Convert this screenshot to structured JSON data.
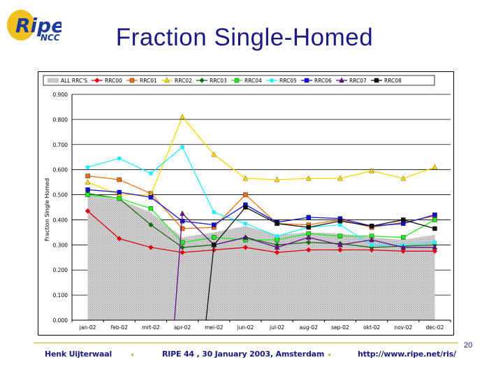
{
  "slide": {
    "title": "Fraction Single-Homed",
    "logo_main": "Ripe",
    "logo_sub": "NCC",
    "footer_author": "Henk Uijterwaal",
    "footer_event": "RIPE 44 ,  30 January 2003, Amsterdam",
    "footer_url": "http://www.ripe.net/ris/",
    "page_number": "20"
  },
  "chart_data": {
    "type": "line",
    "ylabel": "Fraction Single Homed",
    "xlabel": "",
    "categories": [
      "jan-02",
      "feb-02",
      "mrt-02",
      "apr-02",
      "mei-02",
      "jun-02",
      "jul-02",
      "aug-02",
      "sep-02",
      "okt-02",
      "nov-02",
      "dec-02"
    ],
    "ylim": [
      0,
      0.9
    ],
    "yticks": [
      "0.000",
      "0.100",
      "0.200",
      "0.300",
      "0.400",
      "0.500",
      "0.600",
      "0.700",
      "0.800",
      "0.900"
    ],
    "grid": true,
    "legend_position": "top",
    "area_series": {
      "name": "ALL RRC'S",
      "values": [
        0.5,
        0.48,
        0.43,
        0.33,
        0.35,
        0.375,
        0.34,
        0.35,
        0.345,
        0.33,
        0.32,
        0.34
      ]
    },
    "series": [
      {
        "name": "RRC00",
        "color": "#e0000e",
        "marker": "diamond",
        "values": [
          0.435,
          0.325,
          0.29,
          0.27,
          0.28,
          0.29,
          0.27,
          0.28,
          0.28,
          0.28,
          0.275,
          0.275
        ]
      },
      {
        "name": "RRC01",
        "color": "#f07010",
        "marker": "square",
        "values": [
          0.575,
          0.56,
          0.505,
          0.365,
          0.37,
          0.5,
          0.385,
          0.38,
          0.4,
          0.37,
          0.39,
          0.415
        ]
      },
      {
        "name": "RRC02",
        "color": "#ffd700",
        "marker": "triangle",
        "values": [
          0.55,
          0.5,
          0.5,
          0.81,
          0.66,
          0.565,
          0.56,
          0.565,
          0.565,
          0.595,
          0.565,
          0.61
        ]
      },
      {
        "name": "RRC03",
        "color": "#1a6a1a",
        "marker": "diamond",
        "values": [
          0.505,
          0.485,
          0.38,
          0.29,
          0.3,
          0.33,
          0.3,
          0.31,
          0.305,
          0.29,
          0.295,
          0.3
        ]
      },
      {
        "name": "RRC04",
        "color": "#22ee22",
        "marker": "square",
        "values": [
          0.5,
          0.485,
          0.445,
          0.31,
          0.33,
          0.32,
          0.32,
          0.345,
          0.335,
          0.335,
          0.33,
          0.4
        ]
      },
      {
        "name": "RRC05",
        "color": "#22eeff",
        "marker": "circle",
        "values": [
          0.61,
          0.645,
          0.585,
          0.69,
          0.43,
          0.385,
          0.335,
          0.37,
          0.38,
          0.3,
          0.3,
          0.31
        ]
      },
      {
        "name": "RRC06",
        "color": "#1010dd",
        "marker": "square",
        "values": [
          0.52,
          0.51,
          0.49,
          0.395,
          0.38,
          0.46,
          0.39,
          0.41,
          0.405,
          0.375,
          0.385,
          0.42
        ]
      },
      {
        "name": "RRC07",
        "color": "#6a0a8a",
        "marker": "triangle",
        "values": [
          null,
          null,
          null,
          0.425,
          0.3,
          0.33,
          0.29,
          0.33,
          0.3,
          0.32,
          0.29,
          0.29
        ]
      },
      {
        "name": "RRC08",
        "color": "#111111",
        "marker": "square",
        "values": [
          null,
          null,
          null,
          null,
          0.3,
          0.45,
          0.385,
          0.37,
          0.395,
          0.375,
          0.4,
          0.365
        ]
      }
    ]
  }
}
